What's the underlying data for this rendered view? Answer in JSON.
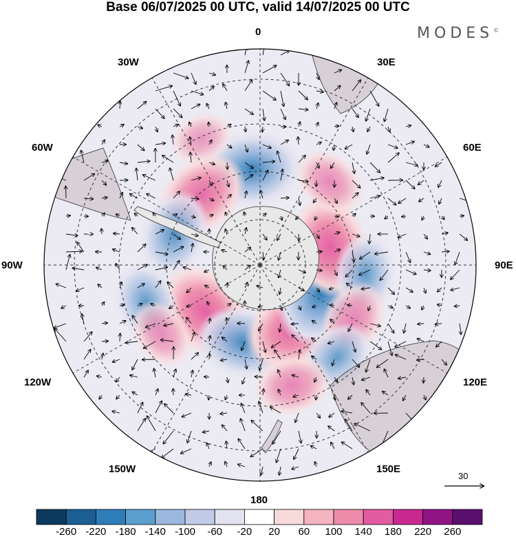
{
  "title": "Base 06/07/2025 00 UTC, valid 14/07/2025 00 UTC",
  "brand": "MODES",
  "brand_mark": "©",
  "lon_labels": {
    "l0": "0",
    "l30e": "30E",
    "l60e": "60E",
    "l90e": "90E",
    "l120e": "120E",
    "l150e": "150E",
    "l180": "180",
    "l150w": "150W",
    "l120w": "120W",
    "l90w": "90W",
    "l60w": "60W",
    "l30w": "30W"
  },
  "vector_scale_label": "30",
  "colorbar": {
    "ticks": [
      "-260",
      "-220",
      "-180",
      "-140",
      "-100",
      "-60",
      "-20",
      "20",
      "60",
      "100",
      "140",
      "180",
      "220",
      "260"
    ],
    "colors": [
      "#0c3a5e",
      "#1b5f93",
      "#2f7db8",
      "#5b9fce",
      "#9bb8de",
      "#c2cbe6",
      "#e2e2f0",
      "#ffffff",
      "#f9dadb",
      "#f4b4c0",
      "#ee8bab",
      "#e35ba0",
      "#c82a90",
      "#911485",
      "#5b0f6e"
    ]
  },
  "anomalies": [
    {
      "lon": 5,
      "lat": -50,
      "value": -150
    },
    {
      "lon": 40,
      "lat": -52,
      "value": 130
    },
    {
      "lon": 70,
      "lat": -52,
      "value": -110
    },
    {
      "lon": 130,
      "lat": -60,
      "value": 150
    },
    {
      "lon": 108,
      "lat": -40,
      "value": -90
    },
    {
      "lon": 125,
      "lat": -40,
      "value": 60
    },
    {
      "lon": 168,
      "lat": -57,
      "value": -130
    },
    {
      "lon": -152,
      "lat": -60,
      "value": 150
    },
    {
      "lon": -115,
      "lat": -62,
      "value": -170
    },
    {
      "lon": -75,
      "lat": -60,
      "value": 150
    },
    {
      "lon": -95,
      "lat": -46,
      "value": -90
    },
    {
      "lon": -120,
      "lat": -45,
      "value": 80
    },
    {
      "lon": -140,
      "lat": -40,
      "value": -80
    },
    {
      "lon": -165,
      "lat": -38,
      "value": 80
    },
    {
      "lon": -40,
      "lat": -45,
      "value": 70
    },
    {
      "lon": 25,
      "lat": -32,
      "value": 40
    }
  ]
}
